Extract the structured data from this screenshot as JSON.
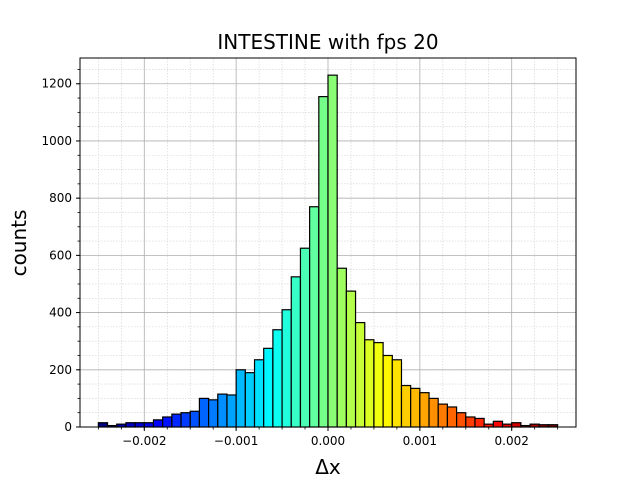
{
  "chart_data": {
    "type": "bar",
    "title": "INTESTINE with fps 20",
    "xlabel": "Δx",
    "ylabel": "counts",
    "xlim": [
      -0.0027,
      0.0027
    ],
    "ylim": [
      0,
      1290
    ],
    "grid": true,
    "colormap": "jet",
    "bar_edge_color": "#000000",
    "bin_width": 0.0001,
    "x_ticks": [
      {
        "value": -0.002,
        "label": "−0.002"
      },
      {
        "value": -0.001,
        "label": "−0.001"
      },
      {
        "value": 0.0,
        "label": "0.000"
      },
      {
        "value": 0.001,
        "label": "0.001"
      },
      {
        "value": 0.002,
        "label": "0.002"
      }
    ],
    "y_ticks": [
      {
        "value": 0,
        "label": "0"
      },
      {
        "value": 200,
        "label": "200"
      },
      {
        "value": 400,
        "label": "400"
      },
      {
        "value": 600,
        "label": "600"
      },
      {
        "value": 800,
        "label": "800"
      },
      {
        "value": 1000,
        "label": "1000"
      },
      {
        "value": 1200,
        "label": "1200"
      }
    ],
    "bins_left": [
      -0.0025,
      -0.0024,
      -0.0023,
      -0.0022,
      -0.0021,
      -0.002,
      -0.0019,
      -0.0018,
      -0.0017,
      -0.0016,
      -0.0015,
      -0.0014,
      -0.0013,
      -0.0012,
      -0.0011,
      -0.001,
      -0.0009,
      -0.0008,
      -0.0007,
      -0.0006,
      -0.0005,
      -0.0004,
      -0.0003,
      -0.0002,
      -0.0001,
      0.0,
      0.0001,
      0.0002,
      0.0003,
      0.0004,
      0.0005,
      0.0006,
      0.0007,
      0.0008,
      0.0009,
      0.001,
      0.0011,
      0.0012,
      0.0013,
      0.0014,
      0.0015,
      0.0016,
      0.0017,
      0.0018,
      0.0019,
      0.002,
      0.0021,
      0.0022,
      0.0023,
      0.0024
    ],
    "counts": [
      15,
      5,
      10,
      15,
      15,
      15,
      25,
      35,
      45,
      50,
      55,
      100,
      95,
      115,
      112,
      200,
      190,
      235,
      275,
      340,
      410,
      525,
      625,
      770,
      1155,
      1230,
      555,
      475,
      365,
      305,
      295,
      250,
      235,
      145,
      135,
      120,
      100,
      80,
      70,
      50,
      35,
      30,
      10,
      20,
      10,
      15,
      5,
      10,
      8,
      8
    ]
  }
}
